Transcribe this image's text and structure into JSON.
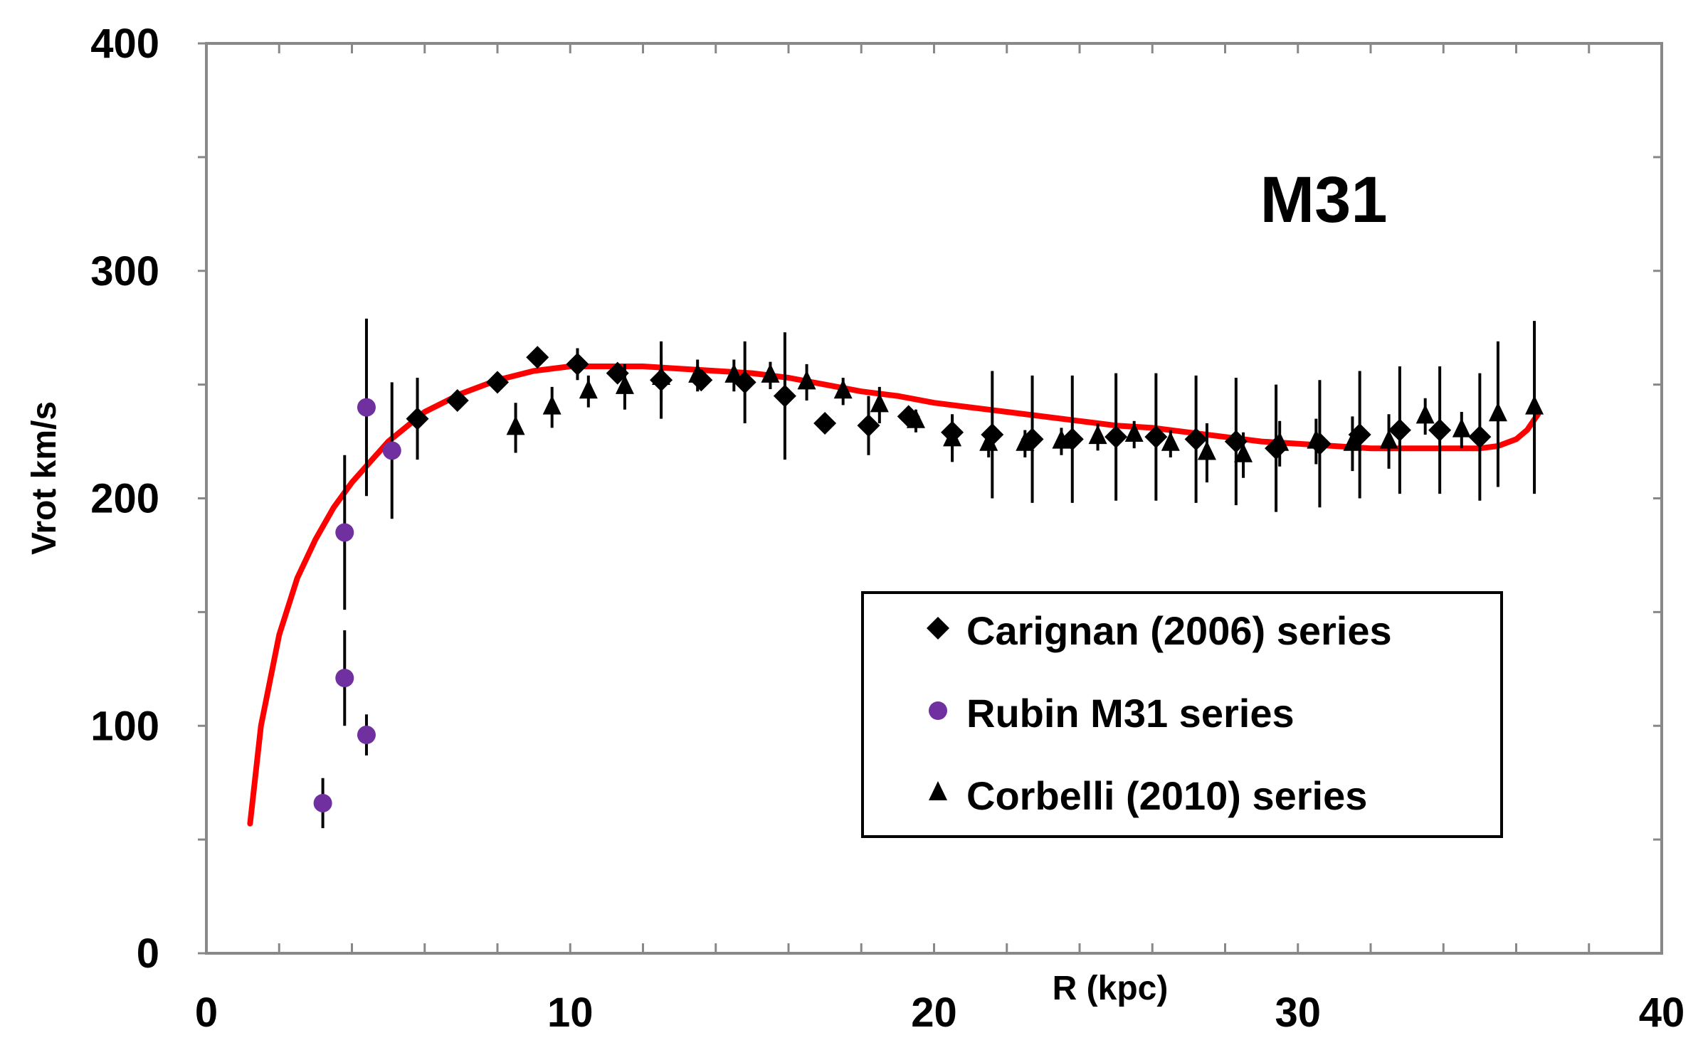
{
  "chart_data": {
    "type": "scatter",
    "title": "M31",
    "xlabel": "R (kpc)",
    "ylabel": "Vrot km/s",
    "xlim": [
      0,
      40
    ],
    "ylim": [
      0,
      400
    ],
    "x_ticks": [
      0,
      10,
      20,
      30,
      40
    ],
    "y_ticks": [
      0,
      100,
      200,
      300,
      400
    ],
    "grid": false,
    "legend_position": "center-right",
    "series": [
      {
        "name": "Carignan (2006) series",
        "marker": "diamond",
        "color": "#000000",
        "points": [
          {
            "x": 5.8,
            "y": 235,
            "err": 18
          },
          {
            "x": 6.9,
            "y": 243,
            "err": 0
          },
          {
            "x": 8.0,
            "y": 251,
            "err": 0
          },
          {
            "x": 9.1,
            "y": 262,
            "err": 0
          },
          {
            "x": 10.2,
            "y": 259,
            "err": 7
          },
          {
            "x": 11.3,
            "y": 255,
            "err": 0
          },
          {
            "x": 12.5,
            "y": 252,
            "err": 17
          },
          {
            "x": 13.6,
            "y": 252,
            "err": 0
          },
          {
            "x": 14.8,
            "y": 251,
            "err": 18
          },
          {
            "x": 15.9,
            "y": 245,
            "err": 28
          },
          {
            "x": 17.0,
            "y": 233,
            "err": 0
          },
          {
            "x": 18.2,
            "y": 232,
            "err": 13
          },
          {
            "x": 19.3,
            "y": 236,
            "err": 0
          },
          {
            "x": 20.5,
            "y": 229,
            "err": 8
          },
          {
            "x": 21.6,
            "y": 228,
            "err": 28
          },
          {
            "x": 22.7,
            "y": 226,
            "err": 28
          },
          {
            "x": 23.8,
            "y": 226,
            "err": 28
          },
          {
            "x": 25.0,
            "y": 227,
            "err": 28
          },
          {
            "x": 26.1,
            "y": 227,
            "err": 28
          },
          {
            "x": 27.2,
            "y": 226,
            "err": 28
          },
          {
            "x": 28.3,
            "y": 225,
            "err": 28
          },
          {
            "x": 29.4,
            "y": 222,
            "err": 28
          },
          {
            "x": 30.6,
            "y": 224,
            "err": 28
          },
          {
            "x": 31.7,
            "y": 228,
            "err": 28
          },
          {
            "x": 32.8,
            "y": 230,
            "err": 28
          },
          {
            "x": 33.9,
            "y": 230,
            "err": 28
          },
          {
            "x": 35.0,
            "y": 227,
            "err": 28
          }
        ]
      },
      {
        "name": "Rubin M31 series",
        "marker": "circle",
        "color": "#7030A0",
        "points": [
          {
            "x": 3.2,
            "y": 66,
            "err": 11
          },
          {
            "x": 3.8,
            "y": 185,
            "err": 34
          },
          {
            "x": 3.8,
            "y": 121,
            "err": 21
          },
          {
            "x": 4.4,
            "y": 240,
            "err": 39
          },
          {
            "x": 4.4,
            "y": 96,
            "err": 9
          },
          {
            "x": 5.1,
            "y": 221,
            "err": 30
          }
        ]
      },
      {
        "name": "Corbelli (2010) series",
        "marker": "triangle",
        "color": "#000000",
        "points": [
          {
            "x": 8.5,
            "y": 231,
            "err": 11
          },
          {
            "x": 9.5,
            "y": 240,
            "err": 9
          },
          {
            "x": 10.5,
            "y": 247,
            "err": 7
          },
          {
            "x": 11.5,
            "y": 249,
            "err": 10
          },
          {
            "x": 12.5,
            "y": 253,
            "err": 10
          },
          {
            "x": 13.5,
            "y": 254,
            "err": 7
          },
          {
            "x": 14.5,
            "y": 254,
            "err": 7
          },
          {
            "x": 15.5,
            "y": 254,
            "err": 6
          },
          {
            "x": 16.5,
            "y": 251,
            "err": 8
          },
          {
            "x": 17.5,
            "y": 247,
            "err": 6
          },
          {
            "x": 18.5,
            "y": 241,
            "err": 8
          },
          {
            "x": 19.5,
            "y": 234,
            "err": 5
          },
          {
            "x": 20.5,
            "y": 226,
            "err": 10
          },
          {
            "x": 21.5,
            "y": 224,
            "err": 6
          },
          {
            "x": 22.5,
            "y": 224,
            "err": 6
          },
          {
            "x": 23.5,
            "y": 225,
            "err": 6
          },
          {
            "x": 24.5,
            "y": 227,
            "err": 6
          },
          {
            "x": 25.5,
            "y": 228,
            "err": 6
          },
          {
            "x": 26.5,
            "y": 224,
            "err": 6
          },
          {
            "x": 27.5,
            "y": 220,
            "err": 13
          },
          {
            "x": 28.5,
            "y": 219,
            "err": 10
          },
          {
            "x": 29.5,
            "y": 224,
            "err": 10
          },
          {
            "x": 30.5,
            "y": 225,
            "err": 10
          },
          {
            "x": 31.5,
            "y": 224,
            "err": 12
          },
          {
            "x": 32.5,
            "y": 225,
            "err": 12
          },
          {
            "x": 33.5,
            "y": 236,
            "err": 8
          },
          {
            "x": 34.5,
            "y": 230,
            "err": 8
          },
          {
            "x": 35.5,
            "y": 237,
            "err": 32
          },
          {
            "x": 36.5,
            "y": 240,
            "err": 38
          }
        ]
      },
      {
        "name": "model fit",
        "marker": "line",
        "color": "#FF0000",
        "in_legend": false,
        "points": [
          {
            "x": 1.2,
            "y": 57
          },
          {
            "x": 1.5,
            "y": 100
          },
          {
            "x": 2.0,
            "y": 140
          },
          {
            "x": 2.5,
            "y": 165
          },
          {
            "x": 3.0,
            "y": 182
          },
          {
            "x": 3.5,
            "y": 196
          },
          {
            "x": 4.0,
            "y": 207
          },
          {
            "x": 5.0,
            "y": 225
          },
          {
            "x": 6.0,
            "y": 238
          },
          {
            "x": 7.0,
            "y": 246
          },
          {
            "x": 8.0,
            "y": 252
          },
          {
            "x": 9.0,
            "y": 256
          },
          {
            "x": 10.0,
            "y": 258
          },
          {
            "x": 11.0,
            "y": 258
          },
          {
            "x": 12.0,
            "y": 258
          },
          {
            "x": 13.0,
            "y": 257
          },
          {
            "x": 14.0,
            "y": 256
          },
          {
            "x": 15.0,
            "y": 255
          },
          {
            "x": 16.0,
            "y": 253
          },
          {
            "x": 17.0,
            "y": 250
          },
          {
            "x": 18.0,
            "y": 247
          },
          {
            "x": 19.0,
            "y": 245
          },
          {
            "x": 20.0,
            "y": 242
          },
          {
            "x": 21.0,
            "y": 240
          },
          {
            "x": 22.0,
            "y": 238
          },
          {
            "x": 23.0,
            "y": 236
          },
          {
            "x": 24.0,
            "y": 234
          },
          {
            "x": 25.0,
            "y": 232
          },
          {
            "x": 26.0,
            "y": 231
          },
          {
            "x": 27.0,
            "y": 229
          },
          {
            "x": 28.0,
            "y": 227
          },
          {
            "x": 29.0,
            "y": 225
          },
          {
            "x": 30.0,
            "y": 224
          },
          {
            "x": 31.0,
            "y": 223
          },
          {
            "x": 32.0,
            "y": 222
          },
          {
            "x": 33.0,
            "y": 222
          },
          {
            "x": 34.0,
            "y": 222
          },
          {
            "x": 35.0,
            "y": 222
          },
          {
            "x": 35.5,
            "y": 223
          },
          {
            "x": 36.0,
            "y": 226
          },
          {
            "x": 36.3,
            "y": 230
          },
          {
            "x": 36.6,
            "y": 237
          }
        ]
      }
    ]
  }
}
